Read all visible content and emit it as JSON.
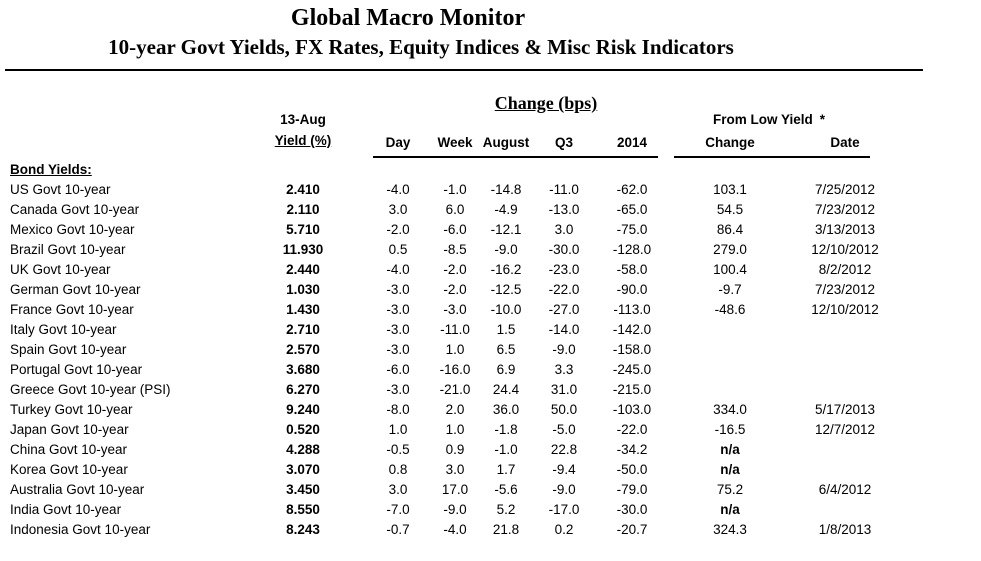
{
  "header": {
    "title": "Global Macro Monitor",
    "subtitle": "10-year Govt Yields, FX Rates, Equity Indices & Misc Risk Indicators"
  },
  "table": {
    "group_header": "Change (bps)",
    "yield_date_label": "13-Aug",
    "yield_label": "Yield (%)",
    "from_low_label": "From Low Yield",
    "from_low_asterisk": "*",
    "columns": {
      "day": "Day",
      "week": "Week",
      "august": "August",
      "q3": "Q3",
      "y2014": "2014",
      "change": "Change",
      "date": "Date"
    },
    "section_label": "Bond Yields:",
    "rows": [
      {
        "name": "US Govt 10-year",
        "yield": "2.410",
        "day": "-4.0",
        "week": "-1.0",
        "august": "-14.8",
        "q3": "-11.0",
        "y2014": "-62.0",
        "change": "103.1",
        "date": "7/25/2012"
      },
      {
        "name": "Canada Govt 10-year",
        "yield": "2.110",
        "day": "3.0",
        "week": "6.0",
        "august": "-4.9",
        "q3": "-13.0",
        "y2014": "-65.0",
        "change": "54.5",
        "date": "7/23/2012"
      },
      {
        "name": "Mexico Govt 10-year",
        "yield": "5.710",
        "day": "-2.0",
        "week": "-6.0",
        "august": "-12.1",
        "q3": "3.0",
        "y2014": "-75.0",
        "change": "86.4",
        "date": "3/13/2013"
      },
      {
        "name": "Brazil Govt 10-year",
        "yield": "11.930",
        "day": "0.5",
        "week": "-8.5",
        "august": "-9.0",
        "q3": "-30.0",
        "y2014": "-128.0",
        "change": "279.0",
        "date": "12/10/2012"
      },
      {
        "name": "UK Govt 10-year",
        "yield": "2.440",
        "day": "-4.0",
        "week": "-2.0",
        "august": "-16.2",
        "q3": "-23.0",
        "y2014": "-58.0",
        "change": "100.4",
        "date": "8/2/2012"
      },
      {
        "name": "German Govt 10-year",
        "yield": "1.030",
        "day": "-3.0",
        "week": "-2.0",
        "august": "-12.5",
        "q3": "-22.0",
        "y2014": "-90.0",
        "change": "-9.7",
        "date": "7/23/2012"
      },
      {
        "name": "France Govt 10-year",
        "yield": "1.430",
        "day": "-3.0",
        "week": "-3.0",
        "august": "-10.0",
        "q3": "-27.0",
        "y2014": "-113.0",
        "change": "-48.6",
        "date": "12/10/2012"
      },
      {
        "name": "Italy Govt 10-year",
        "yield": "2.710",
        "day": "-3.0",
        "week": "-11.0",
        "august": "1.5",
        "q3": "-14.0",
        "y2014": "-142.0",
        "change": "",
        "date": ""
      },
      {
        "name": "Spain Govt 10-year",
        "yield": "2.570",
        "day": "-3.0",
        "week": "1.0",
        "august": "6.5",
        "q3": "-9.0",
        "y2014": "-158.0",
        "change": "",
        "date": ""
      },
      {
        "name": "Portugal Govt 10-year",
        "yield": "3.680",
        "day": "-6.0",
        "week": "-16.0",
        "august": "6.9",
        "q3": "3.3",
        "y2014": "-245.0",
        "change": "",
        "date": ""
      },
      {
        "name": "Greece Govt 10-year (PSI)",
        "yield": "6.270",
        "day": "-3.0",
        "week": "-21.0",
        "august": "24.4",
        "q3": "31.0",
        "y2014": "-215.0",
        "change": "",
        "date": ""
      },
      {
        "name": "Turkey Govt 10-year",
        "yield": "9.240",
        "day": "-8.0",
        "week": "2.0",
        "august": "36.0",
        "q3": "50.0",
        "y2014": "-103.0",
        "change": "334.0",
        "date": "5/17/2013"
      },
      {
        "name": "Japan Govt 10-year",
        "yield": "0.520",
        "day": "1.0",
        "week": "1.0",
        "august": "-1.8",
        "q3": "-5.0",
        "y2014": "-22.0",
        "change": "-16.5",
        "date": "12/7/2012"
      },
      {
        "name": "China Govt 10-year",
        "yield": "4.288",
        "day": "-0.5",
        "week": "0.9",
        "august": "-1.0",
        "q3": "22.8",
        "y2014": "-34.2",
        "change": "n/a",
        "date": ""
      },
      {
        "name": "Korea Govt 10-year",
        "yield": "3.070",
        "day": "0.8",
        "week": "3.0",
        "august": "1.7",
        "q3": "-9.4",
        "y2014": "-50.0",
        "change": "n/a",
        "date": ""
      },
      {
        "name": "Australia Govt 10-year",
        "yield": "3.450",
        "day": "3.0",
        "week": "17.0",
        "august": "-5.6",
        "q3": "-9.0",
        "y2014": "-79.0",
        "change": "75.2",
        "date": "6/4/2012"
      },
      {
        "name": "India Govt 10-year",
        "yield": "8.550",
        "day": "-7.0",
        "week": "-9.0",
        "august": "5.2",
        "q3": "-17.0",
        "y2014": "-30.0",
        "change": "n/a",
        "date": ""
      },
      {
        "name": "Indonesia Govt 10-year",
        "yield": "8.243",
        "day": "-0.7",
        "week": "-4.0",
        "august": "21.8",
        "q3": "0.2",
        "y2014": "-20.7",
        "change": "324.3",
        "date": "1/8/2013"
      }
    ]
  },
  "colors": {
    "text": "#000000",
    "rule": "#000000",
    "background": "#ffffff"
  }
}
